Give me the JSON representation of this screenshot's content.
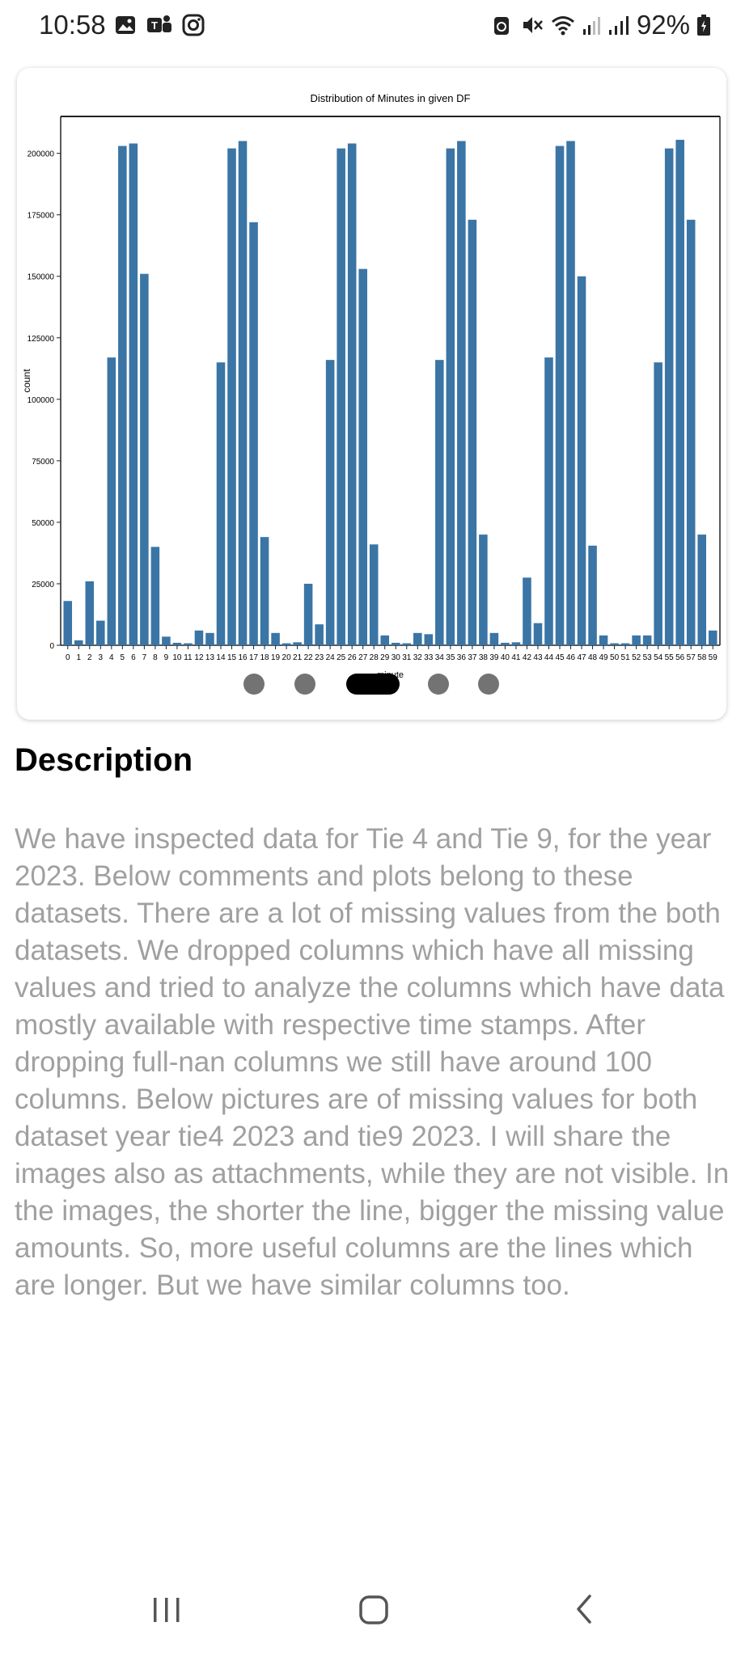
{
  "status_bar": {
    "time": "10:58",
    "battery": "92%",
    "left_icons": [
      "gallery-icon",
      "teams-icon",
      "instagram-icon"
    ],
    "right_icons": [
      "recycle-icon",
      "mute-icon",
      "wifi-icon",
      "signal-r-icon",
      "signal-icon",
      "battery-icon"
    ]
  },
  "chart_data": {
    "type": "bar",
    "title": "Distribution of Minutes in given DF",
    "xlabel": "minute",
    "ylabel": "count",
    "ylim": [
      0,
      215000
    ],
    "yticks": [
      0,
      25000,
      50000,
      75000,
      100000,
      125000,
      150000,
      175000,
      200000
    ],
    "bar_color": "#3a75a5",
    "categories": [
      "0",
      "1",
      "2",
      "3",
      "4",
      "5",
      "6",
      "7",
      "8",
      "9",
      "10",
      "11",
      "12",
      "13",
      "14",
      "15",
      "16",
      "17",
      "18",
      "19",
      "20",
      "21",
      "22",
      "23",
      "24",
      "25",
      "26",
      "27",
      "28",
      "29",
      "30",
      "31",
      "32",
      "33",
      "34",
      "35",
      "36",
      "37",
      "38",
      "39",
      "40",
      "41",
      "42",
      "43",
      "44",
      "45",
      "46",
      "47",
      "48",
      "49",
      "50",
      "51",
      "52",
      "53",
      "54",
      "55",
      "56",
      "57",
      "58",
      "59"
    ],
    "values": [
      18000,
      2000,
      26000,
      10000,
      117000,
      203000,
      204000,
      151000,
      40000,
      3500,
      1000,
      800,
      6000,
      5000,
      115000,
      202000,
      205000,
      172000,
      44000,
      5000,
      800,
      1200,
      25000,
      8500,
      116000,
      202000,
      204000,
      153000,
      41000,
      4000,
      1000,
      800,
      5000,
      4500,
      116000,
      202000,
      205000,
      173000,
      45000,
      5000,
      1000,
      1200,
      27500,
      9000,
      117000,
      203000,
      205000,
      150000,
      40500,
      4000,
      800,
      800,
      4000,
      4000,
      115000,
      202000,
      205500,
      173000,
      45000,
      6000
    ]
  },
  "carousel": {
    "count": 5,
    "active_index": 2
  },
  "description": {
    "title": "Description",
    "body": "We have inspected data for Tie 4 and Tie 9, for the year 2023. Below comments and plots belong to these datasets. There are a lot of missing values from the both datasets. We dropped columns which have all missing values and tried to analyze the columns which have data mostly available with respective time stamps. After dropping full-nan columns we still have around 100 columns. Below pictures are of missing values for both dataset year tie4 2023 and tie9 2023. I will share the images also as attachments, while they are not visible. In the images, the shorter the line, bigger the missing value amounts. So, more useful columns are the lines which are longer. But we have similar columns too."
  },
  "nav_bar": {
    "buttons": [
      "recent-apps-icon",
      "home-icon",
      "back-icon"
    ]
  }
}
